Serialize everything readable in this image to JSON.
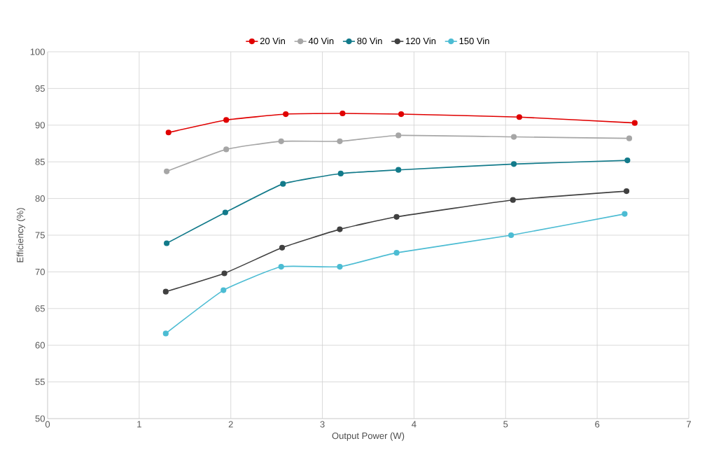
{
  "chart_data": {
    "type": "line",
    "xlabel": "Output Power (W)",
    "ylabel": "Efficiency (%)",
    "xlim": [
      0,
      7
    ],
    "xticks": [
      0,
      1,
      2,
      3,
      4,
      5,
      6,
      7
    ],
    "ylim": [
      50,
      100
    ],
    "yticks": [
      50,
      55,
      60,
      65,
      70,
      75,
      80,
      85,
      90,
      95,
      100
    ],
    "grid": true,
    "legend": "top",
    "marker": "circle",
    "line_style": "solid",
    "series": [
      {
        "name": "20 Vin",
        "color": "#e00000",
        "x": [
          1.32,
          1.95,
          2.6,
          3.22,
          3.86,
          5.15,
          6.41
        ],
        "values": [
          89.0,
          90.7,
          91.5,
          91.6,
          91.5,
          91.1,
          90.3
        ]
      },
      {
        "name": "40 Vin",
        "color": "#a6a6a6",
        "x": [
          1.3,
          1.95,
          2.55,
          3.19,
          3.83,
          5.09,
          6.35
        ],
        "values": [
          83.7,
          86.7,
          87.8,
          87.8,
          88.6,
          88.4,
          88.2
        ]
      },
      {
        "name": "80 Vin",
        "color": "#127a8a",
        "x": [
          1.3,
          1.94,
          2.57,
          3.2,
          3.83,
          5.09,
          6.33
        ],
        "values": [
          73.9,
          78.1,
          82.0,
          83.4,
          83.9,
          84.7,
          85.2
        ]
      },
      {
        "name": "120 Vin",
        "color": "#404040",
        "x": [
          1.29,
          1.93,
          2.56,
          3.19,
          3.81,
          5.08,
          6.32
        ],
        "values": [
          67.3,
          69.8,
          73.3,
          75.8,
          77.5,
          79.8,
          81.0
        ]
      },
      {
        "name": "150 Vin",
        "color": "#4cbcd3",
        "x": [
          1.29,
          1.92,
          2.55,
          3.19,
          3.81,
          5.06,
          6.3
        ],
        "values": [
          61.6,
          67.5,
          70.7,
          70.7,
          72.6,
          75.0,
          77.9
        ]
      }
    ]
  }
}
